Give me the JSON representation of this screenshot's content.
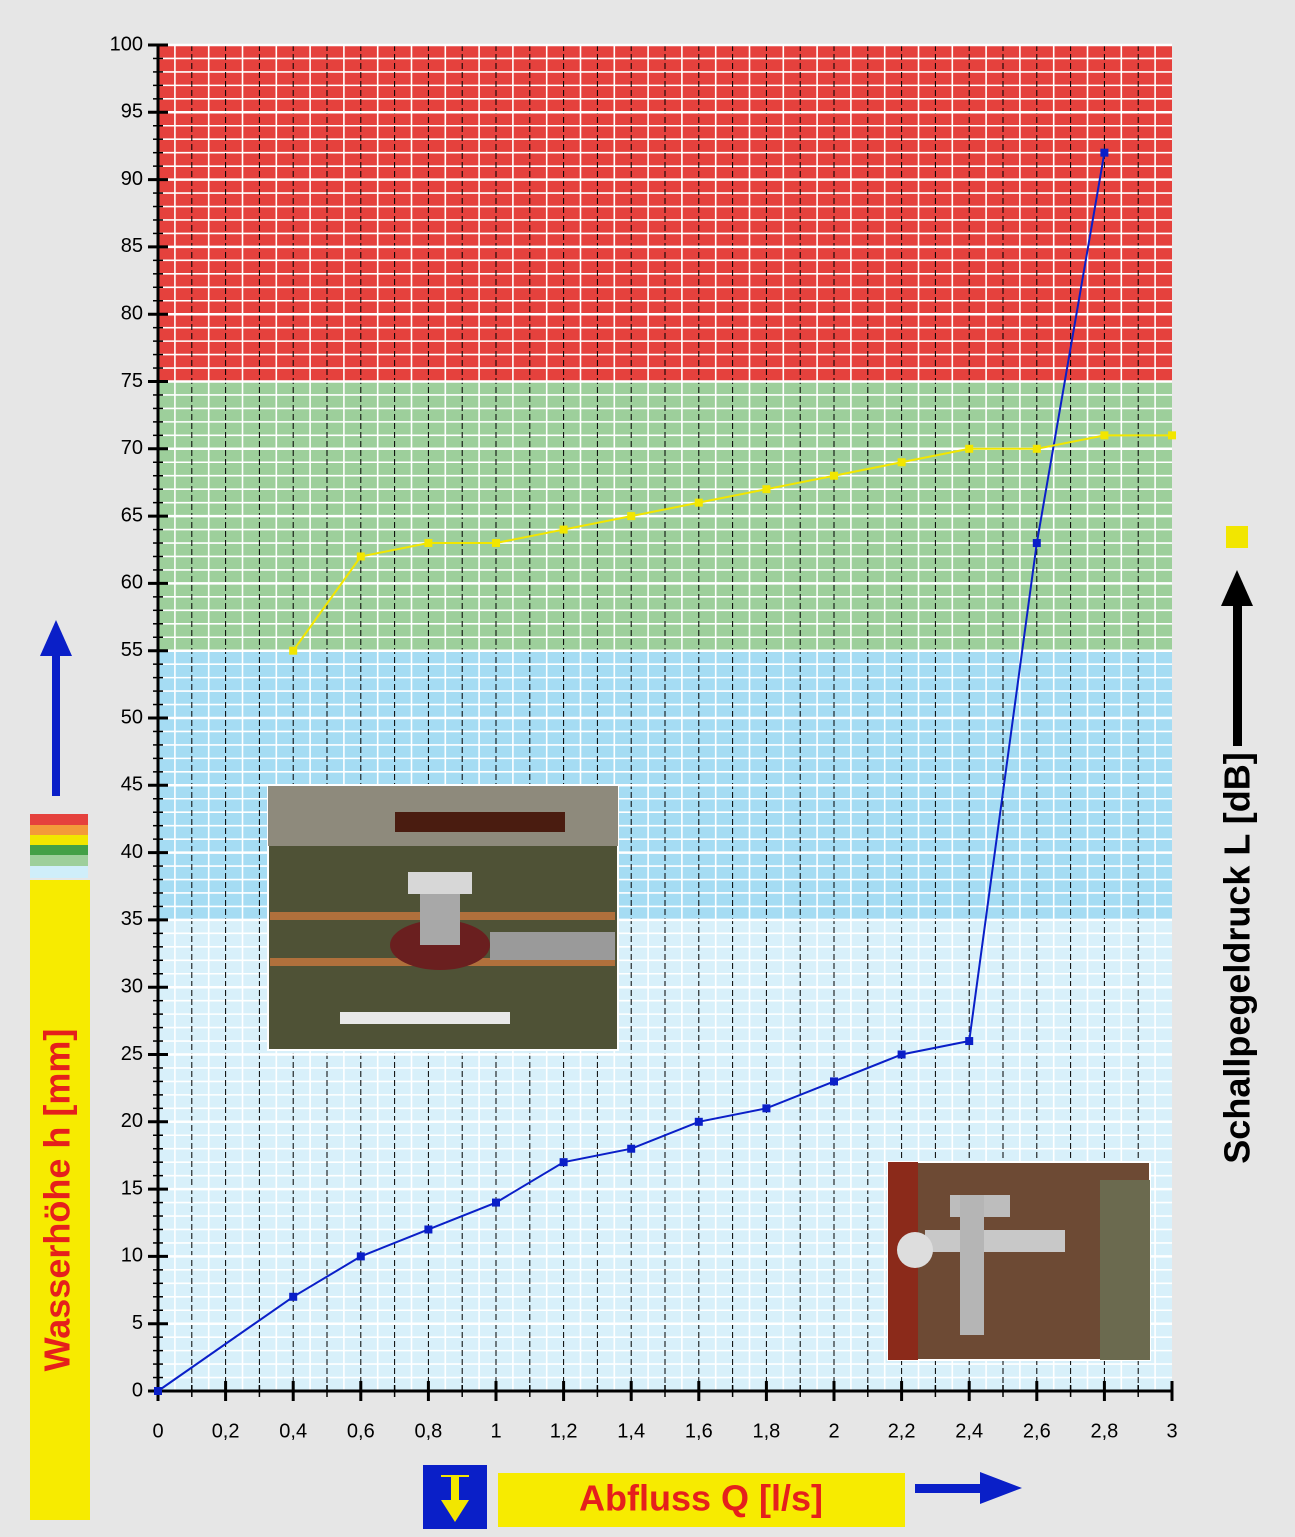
{
  "chart_data": {
    "type": "line",
    "xlabel": "Abfluss Q [l/s]",
    "ylabel": "Wasserhöhe h [mm]",
    "y2label": "Schallpegeldruck L [dB]",
    "xlim": [
      0,
      3
    ],
    "ylim": [
      0,
      100
    ],
    "xticks": [
      0,
      {
        "value": 0.2,
        "label": "0,2"
      },
      {
        "value": 0.4,
        "label": "0,4"
      },
      {
        "value": 0.6,
        "label": "0,6"
      },
      {
        "value": 0.8,
        "label": "0,8"
      },
      1,
      {
        "value": 1.2,
        "label": "1,2"
      },
      {
        "value": 1.4,
        "label": "1,4"
      },
      {
        "value": 1.6,
        "label": "1,6"
      },
      {
        "value": 1.8,
        "label": "1,8"
      },
      2,
      {
        "value": 2.2,
        "label": "2,2"
      },
      {
        "value": 2.4,
        "label": "2,4"
      },
      {
        "value": 2.6,
        "label": "2,6"
      },
      {
        "value": 2.8,
        "label": "2,8"
      },
      3
    ],
    "yticks": [
      0,
      5,
      10,
      15,
      20,
      25,
      30,
      35,
      40,
      45,
      50,
      55,
      60,
      65,
      70,
      75,
      80,
      85,
      90,
      95,
      100
    ],
    "grid": true,
    "bands": [
      {
        "from": 0,
        "to": 35,
        "color": "#d8f0fa"
      },
      {
        "from": 35,
        "to": 55,
        "color": "#a5dcf3"
      },
      {
        "from": 55,
        "to": 75,
        "color": "#9dcf9b"
      },
      {
        "from": 75,
        "to": 100,
        "color": "#e5413d"
      }
    ],
    "series": [
      {
        "color": "#0a1fc8",
        "x": [
          0,
          0.4,
          0.6,
          0.8,
          1,
          1.2,
          1.4,
          1.6,
          1.8,
          2,
          2.2,
          2.4,
          2.6,
          2.8
        ],
        "values": [
          0,
          7,
          10,
          12,
          14,
          17,
          18,
          20,
          21,
          23,
          25,
          26,
          63,
          92
        ]
      },
      {
        "color": "#f2e600",
        "x": [
          0.4,
          0.6,
          0.8,
          1,
          1.2,
          1.4,
          1.6,
          1.8,
          2,
          2.2,
          2.4,
          2.6,
          2.8,
          3
        ],
        "values": [
          55,
          62,
          63,
          63,
          64,
          65,
          66,
          67,
          68,
          69,
          70,
          70,
          71,
          71
        ]
      }
    ]
  }
}
